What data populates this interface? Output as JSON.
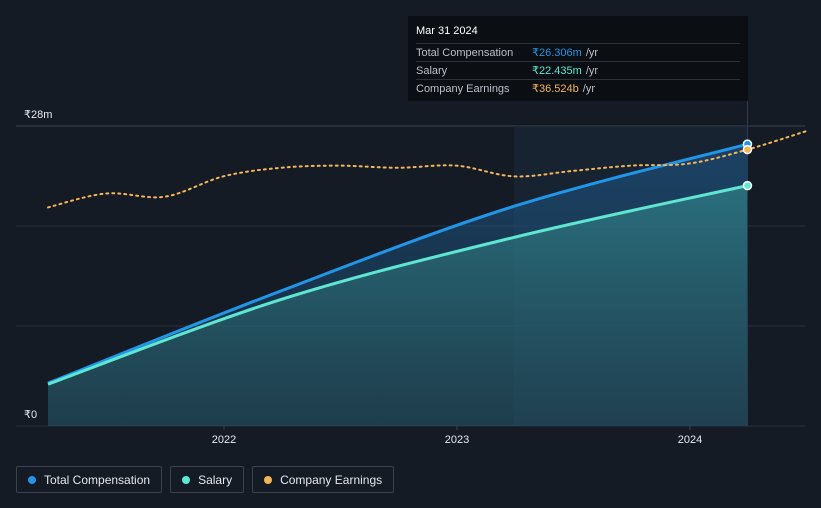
{
  "chart_data": {
    "type": "line",
    "y_axis": {
      "top_label": "₹28m",
      "bottom_label": "₹0",
      "min": 0,
      "max": 28
    },
    "x_axis": {
      "ticks": [
        "2022",
        "2023",
        "2024"
      ]
    },
    "grid": true,
    "series": [
      {
        "name": "Total Compensation",
        "color": "#2196e8",
        "fill": true,
        "points": [
          [
            "2021-03-31",
            4.0
          ],
          [
            "2022-03-31",
            12.6
          ],
          [
            "2023-03-31",
            20.5
          ],
          [
            "2024-03-31",
            26.306
          ]
        ]
      },
      {
        "name": "Salary",
        "color": "#5ee6d2",
        "fill": true,
        "points": [
          [
            "2021-03-31",
            3.9
          ],
          [
            "2022-03-31",
            11.8
          ],
          [
            "2023-03-31",
            17.6
          ],
          [
            "2024-03-31",
            22.435
          ]
        ]
      },
      {
        "name": "Company Earnings",
        "color": "#f2b55a",
        "dashed": true,
        "points": [
          [
            "2021-03-31",
            20.4
          ],
          [
            "2021-06-30",
            21.7
          ],
          [
            "2021-09-30",
            21.4
          ],
          [
            "2021-12-31",
            23.3
          ],
          [
            "2022-03-31",
            24.1
          ],
          [
            "2022-06-30",
            24.3
          ],
          [
            "2022-09-30",
            24.1
          ],
          [
            "2022-12-31",
            24.3
          ],
          [
            "2023-03-31",
            23.3
          ],
          [
            "2023-06-30",
            23.8
          ],
          [
            "2023-09-30",
            24.3
          ],
          [
            "2023-12-31",
            24.5
          ],
          [
            "2024-03-31",
            25.8
          ],
          [
            "2024-06-30",
            27.5
          ]
        ]
      }
    ],
    "highlight": "2024-03-31"
  },
  "tooltip": {
    "date": "Mar 31 2024",
    "rows": [
      {
        "label": "Total Compensation",
        "value": "₹26.306m",
        "unit": "/yr",
        "color": "#2196e8"
      },
      {
        "label": "Salary",
        "value": "₹22.435m",
        "unit": "/yr",
        "color": "#5ee6d2"
      },
      {
        "label": "Company Earnings",
        "value": "₹36.524b",
        "unit": "/yr",
        "color": "#f2b55a"
      }
    ]
  },
  "legend": [
    {
      "label": "Total Compensation",
      "color": "#2196e8"
    },
    {
      "label": "Salary",
      "color": "#5ee6d2"
    },
    {
      "label": "Company Earnings",
      "color": "#f2b55a"
    }
  ]
}
